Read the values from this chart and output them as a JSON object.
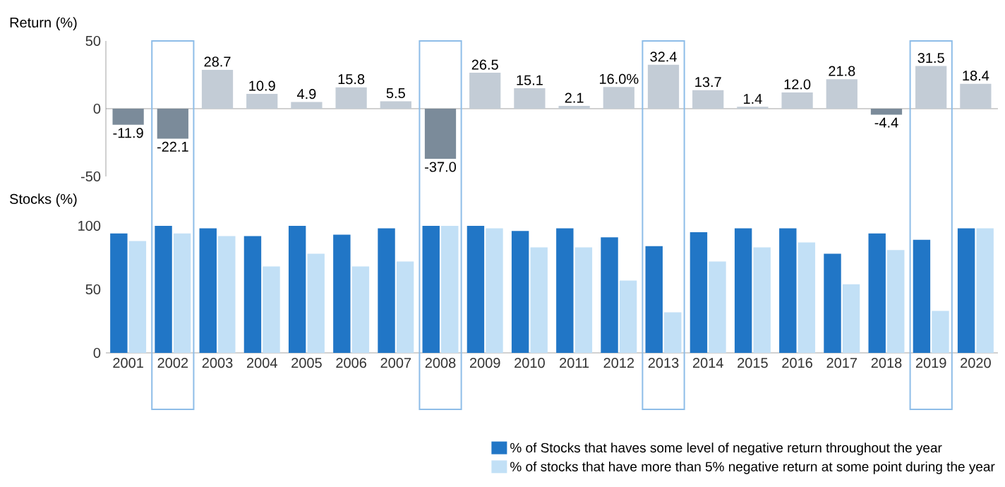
{
  "chart_data": [
    {
      "type": "bar",
      "ylabel": "Return (%)",
      "categories": [
        "2001",
        "2002",
        "2003",
        "2004",
        "2005",
        "2006",
        "2007",
        "2008",
        "2009",
        "2010",
        "2011",
        "2012",
        "2013",
        "2014",
        "2015",
        "2016",
        "2017",
        "2018",
        "2019",
        "2020"
      ],
      "values": [
        -11.9,
        -22.1,
        28.7,
        10.9,
        4.9,
        15.8,
        5.5,
        -37.0,
        26.5,
        15.1,
        2.1,
        16.0,
        32.4,
        13.7,
        1.4,
        12.0,
        21.8,
        -4.4,
        31.5,
        18.4
      ],
      "colors": [
        "#7b8b9a",
        "#7b8b9a",
        "#c3ccd6",
        "#c3ccd6",
        "#c3ccd6",
        "#c3ccd6",
        "#c3ccd6",
        "#7b8b9a",
        "#c3ccd6",
        "#c3ccd6",
        "#c3ccd6",
        "#c3ccd6",
        "#c3ccd6",
        "#c3ccd6",
        "#c3ccd6",
        "#c3ccd6",
        "#c3ccd6",
        "#7b8b9a",
        "#c3ccd6",
        "#c3ccd6"
      ],
      "value_labels": [
        "-11.9",
        "-22.1",
        "28.7",
        "10.9",
        "4.9",
        "15.8",
        "5.5",
        "-37.0",
        "26.5",
        "15.1",
        "2.1",
        "16.0%",
        "32.4",
        "13.7",
        "1.4",
        "12.0",
        "21.8",
        "-4.4",
        "31.5",
        "18.4"
      ],
      "ylim": [
        -50,
        50
      ],
      "yticks": [
        -50,
        0,
        50
      ],
      "tick_labels": "y"
    },
    {
      "type": "bar",
      "ylabel": "Stocks (%)",
      "categories": [
        "2001",
        "2002",
        "2003",
        "2004",
        "2005",
        "2006",
        "2007",
        "2008",
        "2009",
        "2010",
        "2011",
        "2012",
        "2013",
        "2014",
        "2015",
        "2016",
        "2017",
        "2018",
        "2019",
        "2020"
      ],
      "series": [
        {
          "name": "% of Stocks that haves some level of negative return throughout the year",
          "color": "#2176c6",
          "values": [
            94,
            100,
            98,
            92,
            100,
            93,
            98,
            100,
            100,
            96,
            98,
            91,
            84,
            95,
            98,
            98,
            78,
            94,
            89,
            98
          ]
        },
        {
          "name": "% of stocks that have more than 5% negative return at some point during the year",
          "color": "#c2e0f6",
          "values": [
            88,
            94,
            92,
            68,
            78,
            68,
            72,
            100,
            98,
            83,
            83,
            57,
            32,
            72,
            83,
            87,
            54,
            81,
            33,
            98
          ]
        }
      ],
      "ylim": [
        0,
        100
      ],
      "yticks": [
        0,
        50,
        100
      ],
      "legend": "bottom right"
    }
  ]
}
